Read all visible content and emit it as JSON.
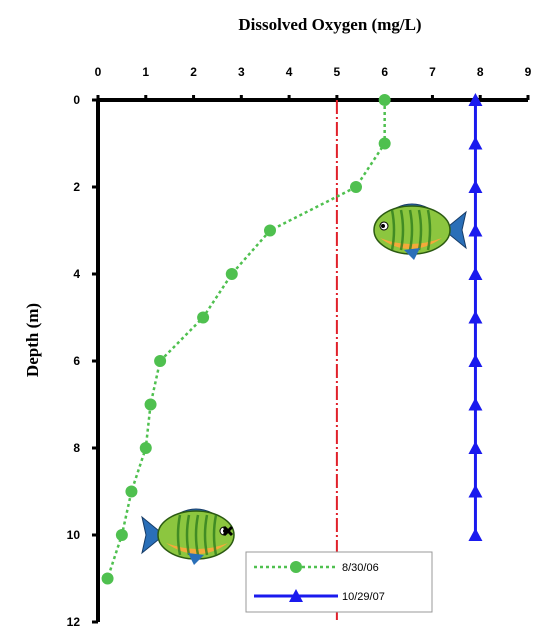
{
  "chart_data": {
    "type": "line",
    "xlabel": "Dissolved Oxygen  (mg/L)",
    "ylabel": "Depth  (m)",
    "xlim": [
      0,
      9
    ],
    "ylim": [
      0,
      12
    ],
    "y_inverted": true,
    "x_axis_position": "top",
    "xticks": [
      "0",
      "1",
      "2",
      "3",
      "4",
      "5",
      "6",
      "7",
      "8",
      "9"
    ],
    "yticks": [
      "0",
      "2",
      "4",
      "6",
      "8",
      "10",
      "12"
    ],
    "grid": false,
    "legend_position": "bottom-right",
    "reference_line": {
      "x": 5,
      "color": "#e0202a",
      "style": "dashed"
    },
    "series": [
      {
        "name": "8/30/06",
        "color": "#4fc04f",
        "line_style": "dotted",
        "marker": "circle",
        "points": [
          {
            "x": 6.0,
            "y": 0
          },
          {
            "x": 6.0,
            "y": 1
          },
          {
            "x": 5.4,
            "y": 2
          },
          {
            "x": 3.6,
            "y": 3
          },
          {
            "x": 2.8,
            "y": 4
          },
          {
            "x": 2.2,
            "y": 5
          },
          {
            "x": 1.3,
            "y": 6
          },
          {
            "x": 1.1,
            "y": 7
          },
          {
            "x": 1.0,
            "y": 8
          },
          {
            "x": 0.7,
            "y": 9
          },
          {
            "x": 0.5,
            "y": 10
          },
          {
            "x": 0.2,
            "y": 11
          }
        ]
      },
      {
        "name": "10/29/07",
        "color": "#1a1aee",
        "line_style": "solid",
        "marker": "triangle",
        "points": [
          {
            "x": 7.9,
            "y": 0
          },
          {
            "x": 7.9,
            "y": 1
          },
          {
            "x": 7.9,
            "y": 2
          },
          {
            "x": 7.9,
            "y": 3
          },
          {
            "x": 7.9,
            "y": 4
          },
          {
            "x": 7.9,
            "y": 5
          },
          {
            "x": 7.9,
            "y": 6
          },
          {
            "x": 7.9,
            "y": 7
          },
          {
            "x": 7.9,
            "y": 8
          },
          {
            "x": 7.9,
            "y": 9
          },
          {
            "x": 7.9,
            "y": 10
          }
        ]
      }
    ]
  },
  "colors": {
    "fish_body": "#8cc63f",
    "fish_stripe": "#2e7d1e",
    "fish_belly": "#f4a93a",
    "fish_fin": "#2a6fb8"
  },
  "icons": [
    "fish-icon",
    "fish-icon"
  ]
}
